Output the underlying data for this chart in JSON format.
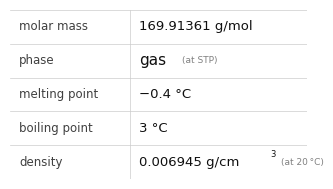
{
  "rows": [
    {
      "label": "molar mass",
      "value_main": "169.91361 g/mol",
      "value_small": null,
      "superscript": null
    },
    {
      "label": "phase",
      "value_main": "gas",
      "value_small": "(at STP)",
      "superscript": null
    },
    {
      "label": "melting point",
      "value_main": "−0.4 °C",
      "value_small": null,
      "superscript": null
    },
    {
      "label": "boiling point",
      "value_main": "3 °C",
      "value_small": null,
      "superscript": null
    },
    {
      "label": "density",
      "value_main": "0.006945 g/cm",
      "value_small": "(at 20 °C)",
      "superscript": "3"
    }
  ],
  "col_split": 0.405,
  "bg_color": "#ffffff",
  "label_color": "#404040",
  "value_color": "#101010",
  "small_color": "#808080",
  "grid_color": "#cccccc",
  "label_fontsize": 8.5,
  "value_fontsize": 9.5,
  "small_fontsize": 6.5,
  "sup_fontsize": 6.0
}
